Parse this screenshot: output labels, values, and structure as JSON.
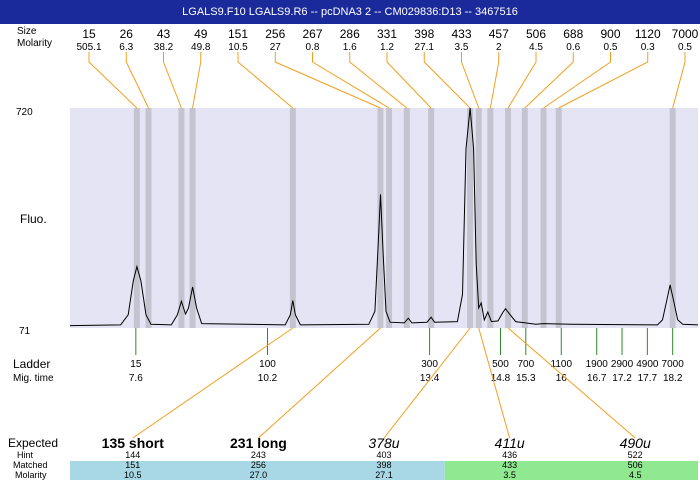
{
  "title": "LGALS9.F10  LGALS9.R6 -- pcDNA3 2 -- CM029836:D13 -- 3467516",
  "labels": {
    "size_row": "Size",
    "molarity_row": "Molarity",
    "fluo_axis": "Fluo.",
    "ladder_row": "Ladder",
    "mig_time_row": "Mig. time",
    "expected_row": "Expected",
    "hint_row": "Hint",
    "matched_row": "Matched",
    "molarity_table_row": "Molarity",
    "y_top": "720",
    "y_bottom": "71"
  },
  "chart_data": {
    "type": "line",
    "title": "LGALS9.F10  LGALS9.R6 -- pcDNA3 2 -- CM029836:D13 -- 3467516",
    "xlabel": "",
    "ylabel": "Fluo.",
    "ylim": [
      71,
      720
    ],
    "xlim": [
      6.3,
      18.7
    ],
    "grid": false,
    "peaks": [
      {
        "size": "15",
        "molarity": "505.1",
        "time": 7.62
      },
      {
        "size": "26",
        "molarity": "6.3",
        "time": 7.85
      },
      {
        "size": "43",
        "molarity": "38.2",
        "time": 8.5
      },
      {
        "size": "49",
        "molarity": "49.8",
        "time": 8.72
      },
      {
        "size": "151",
        "molarity": "10.5",
        "time": 10.7
      },
      {
        "size": "256",
        "molarity": "27",
        "time": 12.43
      },
      {
        "size": "267",
        "molarity": "0.8",
        "time": 12.6
      },
      {
        "size": "286",
        "molarity": "1.6",
        "time": 12.95
      },
      {
        "size": "331",
        "molarity": "1.2",
        "time": 13.43
      },
      {
        "size": "398",
        "molarity": "27.1",
        "time": 14.2
      },
      {
        "size": "433",
        "molarity": "3.5",
        "time": 14.37
      },
      {
        "size": "457",
        "molarity": "2",
        "time": 14.6
      },
      {
        "size": "506",
        "molarity": "4.5",
        "time": 14.95
      },
      {
        "size": "688",
        "molarity": "0.6",
        "time": 15.28
      },
      {
        "size": "900",
        "molarity": "0.5",
        "time": 15.65
      },
      {
        "size": "1120",
        "molarity": "0.3",
        "time": 15.95
      },
      {
        "size": "7000",
        "molarity": "0.5",
        "time": 18.2
      }
    ],
    "ladder": [
      {
        "size": "15",
        "time": "7.6"
      },
      {
        "size": "100",
        "time": "10.2"
      },
      {
        "size": "300",
        "time": "13.4"
      },
      {
        "size": "500",
        "time": "14.8"
      },
      {
        "size": "700",
        "time": "15.3"
      },
      {
        "size": "1100",
        "time": "16"
      },
      {
        "size": "1900",
        "time": "16.7"
      },
      {
        "size": "2900",
        "time": "17.2"
      },
      {
        "size": "4900",
        "time": "17.7"
      },
      {
        "size": "7000",
        "time": "18.2"
      }
    ],
    "trace": [
      {
        "x": 6.3,
        "y": 78
      },
      {
        "x": 7.3,
        "y": 80
      },
      {
        "x": 7.45,
        "y": 110
      },
      {
        "x": 7.55,
        "y": 210
      },
      {
        "x": 7.62,
        "y": 252
      },
      {
        "x": 7.7,
        "y": 210
      },
      {
        "x": 7.8,
        "y": 110
      },
      {
        "x": 7.9,
        "y": 82
      },
      {
        "x": 8.3,
        "y": 80
      },
      {
        "x": 8.42,
        "y": 110
      },
      {
        "x": 8.5,
        "y": 150
      },
      {
        "x": 8.58,
        "y": 112
      },
      {
        "x": 8.64,
        "y": 130
      },
      {
        "x": 8.72,
        "y": 192
      },
      {
        "x": 8.8,
        "y": 130
      },
      {
        "x": 8.9,
        "y": 84
      },
      {
        "x": 10.55,
        "y": 80
      },
      {
        "x": 10.65,
        "y": 110
      },
      {
        "x": 10.7,
        "y": 152
      },
      {
        "x": 10.75,
        "y": 110
      },
      {
        "x": 10.85,
        "y": 80
      },
      {
        "x": 12.2,
        "y": 82
      },
      {
        "x": 12.32,
        "y": 120
      },
      {
        "x": 12.38,
        "y": 300
      },
      {
        "x": 12.43,
        "y": 465
      },
      {
        "x": 12.48,
        "y": 300
      },
      {
        "x": 12.54,
        "y": 120
      },
      {
        "x": 12.62,
        "y": 88
      },
      {
        "x": 12.9,
        "y": 86
      },
      {
        "x": 12.98,
        "y": 100
      },
      {
        "x": 13.05,
        "y": 86
      },
      {
        "x": 13.35,
        "y": 88
      },
      {
        "x": 13.43,
        "y": 103
      },
      {
        "x": 13.5,
        "y": 88
      },
      {
        "x": 13.95,
        "y": 90
      },
      {
        "x": 14.05,
        "y": 170
      },
      {
        "x": 14.12,
        "y": 600
      },
      {
        "x": 14.2,
        "y": 720
      },
      {
        "x": 14.27,
        "y": 600
      },
      {
        "x": 14.32,
        "y": 260
      },
      {
        "x": 14.37,
        "y": 130
      },
      {
        "x": 14.42,
        "y": 145
      },
      {
        "x": 14.48,
        "y": 95
      },
      {
        "x": 14.55,
        "y": 118
      },
      {
        "x": 14.62,
        "y": 90
      },
      {
        "x": 14.75,
        "y": 92
      },
      {
        "x": 14.85,
        "y": 118
      },
      {
        "x": 14.9,
        "y": 128
      },
      {
        "x": 14.98,
        "y": 112
      },
      {
        "x": 15.1,
        "y": 90
      },
      {
        "x": 15.5,
        "y": 82
      },
      {
        "x": 15.65,
        "y": 84
      },
      {
        "x": 16.2,
        "y": 82
      },
      {
        "x": 17.9,
        "y": 80
      },
      {
        "x": 18.0,
        "y": 95
      },
      {
        "x": 18.08,
        "y": 150
      },
      {
        "x": 18.15,
        "y": 198
      },
      {
        "x": 18.22,
        "y": 150
      },
      {
        "x": 18.3,
        "y": 95
      },
      {
        "x": 18.4,
        "y": 82
      },
      {
        "x": 18.7,
        "y": 80
      }
    ],
    "expected": [
      {
        "label": "135 short",
        "italic": false,
        "bold": true,
        "hint": "144",
        "matched": "151",
        "molarity": "10.5",
        "peak_time": 10.7
      },
      {
        "label": "231 long",
        "italic": false,
        "bold": true,
        "hint": "243",
        "matched": "256",
        "molarity": "27.0",
        "peak_time": 12.43
      },
      {
        "label": "378u",
        "italic": true,
        "bold": false,
        "hint": "403",
        "matched": "398",
        "molarity": "27.1",
        "peak_time": 14.2
      },
      {
        "label": "411u",
        "italic": true,
        "bold": false,
        "hint": "436",
        "matched": "433",
        "molarity": "3.5",
        "peak_time": 14.37
      },
      {
        "label": "490u",
        "italic": true,
        "bold": false,
        "hint": "522",
        "matched": "506",
        "molarity": "4.5",
        "peak_time": 14.95
      }
    ],
    "colors": {
      "title_bg": "#1a2a9a",
      "plot_bg": "#e4e4f4",
      "peak_band": "#c4c4d0",
      "trace": "#000000",
      "peak_connector": "#f0a020",
      "ladder_tick": "#2a8a2a",
      "matched_blue": "#a8d8e6",
      "matched_green": "#90e890"
    }
  }
}
